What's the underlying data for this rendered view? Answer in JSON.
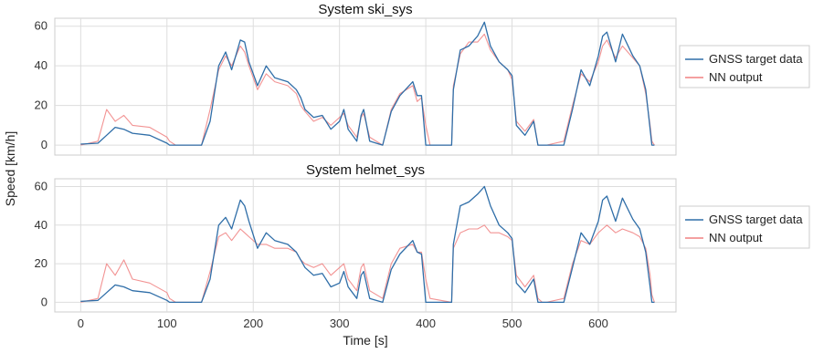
{
  "chart_data": [
    {
      "type": "line",
      "title": "System ski_sys",
      "xlabel": "",
      "ylabel": "",
      "xlim": [
        -30,
        690
      ],
      "ylim": [
        -5,
        64
      ],
      "xticks": [
        0,
        100,
        200,
        300,
        400,
        500,
        600
      ],
      "xtick_labels": [
        "",
        "",
        "",
        "",
        "",
        "",
        ""
      ],
      "yticks": [
        0,
        20,
        40,
        60
      ],
      "ytick_labels": [
        "0",
        "20",
        "40",
        "60"
      ],
      "grid": true,
      "legend_position": "right",
      "series": [
        {
          "name": "GNSS target data",
          "color": "#2f6ea8",
          "x": [
            0,
            20,
            30,
            40,
            50,
            60,
            80,
            100,
            103,
            110,
            130,
            140,
            150,
            160,
            168,
            175,
            185,
            190,
            195,
            205,
            215,
            225,
            240,
            250,
            255,
            260,
            270,
            280,
            290,
            300,
            305,
            310,
            320,
            325,
            328,
            335,
            350,
            360,
            370,
            385,
            390,
            395,
            400,
            405,
            430,
            432,
            440,
            450,
            460,
            468,
            475,
            485,
            495,
            500,
            505,
            515,
            525,
            530,
            535,
            540,
            560,
            570,
            580,
            590,
            600,
            605,
            610,
            620,
            628,
            640,
            648,
            655,
            660,
            662,
            665
          ],
          "y": [
            0.5,
            1,
            5,
            9,
            8,
            6,
            5,
            1,
            0,
            0,
            0,
            0,
            12,
            40,
            47,
            38,
            53,
            52,
            42,
            30,
            40,
            34,
            32,
            28,
            24,
            18,
            14,
            15,
            8,
            12,
            18,
            8,
            2,
            15,
            18,
            2,
            0,
            17,
            25,
            32,
            25,
            25,
            0,
            0,
            0,
            28,
            48,
            50,
            55,
            62,
            50,
            42,
            38,
            35,
            10,
            5,
            12,
            0,
            0,
            0,
            0,
            18,
            38,
            30,
            45,
            55,
            57,
            42,
            56,
            45,
            40,
            28,
            8,
            0,
            0
          ]
        },
        {
          "name": "NN output",
          "color": "#f08080",
          "x": [
            0,
            20,
            30,
            40,
            50,
            60,
            80,
            100,
            103,
            110,
            130,
            140,
            150,
            160,
            168,
            175,
            185,
            190,
            195,
            205,
            215,
            225,
            240,
            250,
            255,
            260,
            270,
            280,
            290,
            300,
            305,
            310,
            320,
            325,
            328,
            335,
            350,
            360,
            370,
            385,
            390,
            395,
            400,
            405,
            430,
            432,
            440,
            450,
            460,
            468,
            475,
            485,
            495,
            500,
            505,
            515,
            525,
            530,
            535,
            540,
            560,
            570,
            580,
            590,
            600,
            605,
            610,
            620,
            628,
            640,
            648,
            655,
            660,
            662,
            665
          ],
          "y": [
            0,
            2,
            18,
            12,
            15,
            10,
            9,
            4,
            2,
            0,
            0,
            0,
            18,
            38,
            45,
            40,
            50,
            47,
            40,
            28,
            36,
            32,
            30,
            26,
            20,
            17,
            12,
            14,
            10,
            14,
            16,
            10,
            4,
            14,
            16,
            4,
            0,
            18,
            26,
            30,
            22,
            24,
            10,
            0,
            0,
            30,
            46,
            52,
            52,
            56,
            48,
            42,
            38,
            33,
            12,
            7,
            13,
            0,
            0,
            0,
            2,
            20,
            36,
            32,
            42,
            50,
            53,
            44,
            50,
            44,
            40,
            26,
            10,
            2,
            0
          ]
        }
      ]
    },
    {
      "type": "line",
      "title": "System helmet_sys",
      "xlabel": "Time [s]",
      "ylabel": "",
      "xlim": [
        -30,
        690
      ],
      "ylim": [
        -5,
        64
      ],
      "xticks": [
        0,
        100,
        200,
        300,
        400,
        500,
        600
      ],
      "xtick_labels": [
        "0",
        "100",
        "200",
        "300",
        "400",
        "500",
        "600"
      ],
      "yticks": [
        0,
        20,
        40,
        60
      ],
      "ytick_labels": [
        "0",
        "20",
        "40",
        "60"
      ],
      "grid": true,
      "legend_position": "right",
      "series": [
        {
          "name": "GNSS target data",
          "color": "#2f6ea8",
          "x": [
            0,
            20,
            30,
            40,
            50,
            60,
            80,
            100,
            103,
            110,
            130,
            140,
            150,
            160,
            168,
            175,
            185,
            190,
            195,
            205,
            215,
            225,
            240,
            250,
            255,
            260,
            270,
            280,
            290,
            300,
            305,
            310,
            320,
            325,
            328,
            335,
            350,
            360,
            370,
            385,
            390,
            395,
            400,
            405,
            430,
            432,
            440,
            450,
            460,
            468,
            475,
            485,
            495,
            500,
            505,
            515,
            525,
            530,
            535,
            540,
            560,
            570,
            580,
            590,
            600,
            605,
            610,
            620,
            628,
            640,
            648,
            655,
            660,
            662,
            665
          ],
          "y": [
            0.5,
            1,
            5,
            9,
            8,
            6,
            5,
            1,
            0,
            0,
            0,
            0,
            12,
            40,
            44,
            38,
            53,
            50,
            42,
            28,
            36,
            32,
            30,
            26,
            22,
            18,
            14,
            15,
            8,
            10,
            16,
            8,
            2,
            14,
            16,
            2,
            0,
            17,
            25,
            32,
            26,
            25,
            0,
            0,
            0,
            30,
            50,
            52,
            56,
            60,
            50,
            40,
            36,
            33,
            10,
            5,
            12,
            0,
            0,
            0,
            0,
            18,
            36,
            30,
            42,
            53,
            55,
            42,
            54,
            43,
            38,
            26,
            8,
            0,
            0
          ]
        },
        {
          "name": "NN output",
          "color": "#f08080",
          "x": [
            0,
            20,
            30,
            40,
            50,
            60,
            80,
            100,
            103,
            110,
            130,
            140,
            150,
            160,
            168,
            175,
            185,
            190,
            195,
            205,
            215,
            225,
            240,
            250,
            255,
            260,
            270,
            280,
            290,
            300,
            305,
            310,
            320,
            325,
            328,
            335,
            350,
            360,
            370,
            385,
            390,
            395,
            400,
            405,
            430,
            432,
            440,
            450,
            460,
            468,
            475,
            485,
            495,
            500,
            505,
            515,
            525,
            530,
            535,
            540,
            560,
            570,
            580,
            590,
            600,
            605,
            610,
            620,
            628,
            640,
            648,
            655,
            660,
            662,
            665
          ],
          "y": [
            0,
            2,
            20,
            14,
            22,
            12,
            10,
            5,
            2,
            0,
            0,
            0,
            16,
            34,
            36,
            32,
            38,
            36,
            34,
            30,
            30,
            28,
            28,
            26,
            22,
            20,
            18,
            20,
            14,
            18,
            20,
            12,
            6,
            18,
            20,
            6,
            2,
            20,
            28,
            30,
            26,
            26,
            12,
            2,
            0,
            28,
            36,
            38,
            38,
            40,
            36,
            36,
            34,
            32,
            14,
            8,
            14,
            2,
            0,
            0,
            2,
            20,
            32,
            30,
            36,
            38,
            40,
            36,
            38,
            36,
            34,
            28,
            14,
            4,
            0
          ]
        }
      ]
    }
  ],
  "shared_ylabel": "Speed [km/h]"
}
